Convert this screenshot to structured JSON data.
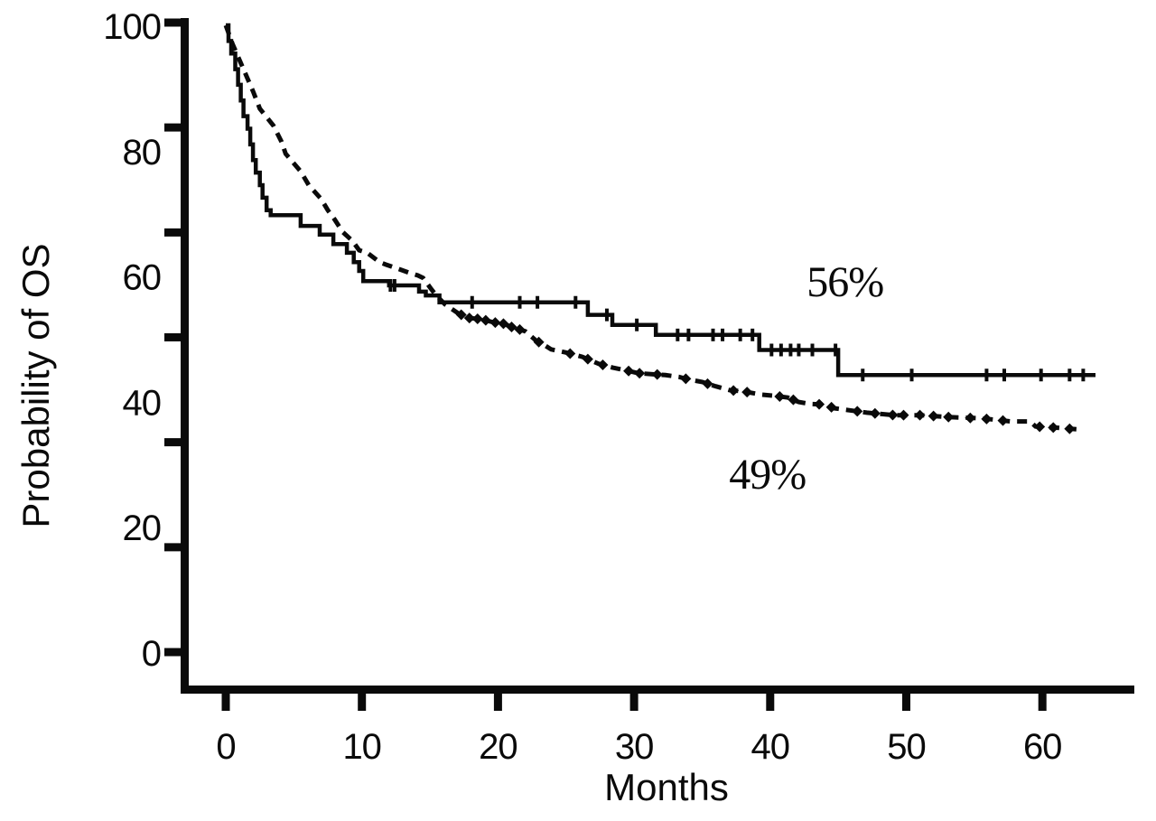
{
  "figure": {
    "background": "#ffffff",
    "ink_color": "#0a0a0a"
  },
  "chart_data": {
    "type": "line",
    "subtype": "kaplan-meier-survival",
    "title": "",
    "xlabel": "Months",
    "ylabel": "Probability of OS",
    "xlim": [
      0,
      67
    ],
    "ylim": [
      0,
      100
    ],
    "grid": false,
    "legend": "none",
    "x_ticks": [
      0,
      10,
      20,
      30,
      40,
      50,
      60
    ],
    "y_axis": {
      "labels": [
        100,
        80,
        60,
        40,
        20,
        0
      ],
      "tick_mark_count": 7
    },
    "annotations": [
      {
        "text": "56%",
        "t": 45.5,
        "p": 59.1
      },
      {
        "text": "49%",
        "t": 39.8,
        "p": 28.4
      }
    ],
    "series": [
      {
        "name": "os-curve-solid",
        "annotation_label": "56%",
        "style": "solid-step",
        "points": [
          [
            0,
            100
          ],
          [
            0.2,
            97.5
          ],
          [
            0.4,
            95.5
          ],
          [
            0.7,
            93
          ],
          [
            0.9,
            90.5
          ],
          [
            1.1,
            88
          ],
          [
            1.3,
            85.5
          ],
          [
            1.6,
            83.5
          ],
          [
            1.8,
            81
          ],
          [
            2.0,
            78.5
          ],
          [
            2.2,
            76.5
          ],
          [
            2.5,
            74.5
          ],
          [
            2.7,
            72.5
          ],
          [
            3.0,
            70.5
          ],
          [
            3.3,
            69.7
          ],
          [
            5.4,
            69.7
          ],
          [
            5.5,
            68.0
          ],
          [
            6.8,
            68.0
          ],
          [
            6.9,
            66.6
          ],
          [
            7.8,
            66.6
          ],
          [
            7.9,
            65.1
          ],
          [
            8.8,
            65.1
          ],
          [
            8.9,
            63.7
          ],
          [
            9.3,
            63.7
          ],
          [
            9.4,
            62.2
          ],
          [
            9.7,
            62.2
          ],
          [
            9.8,
            60.8
          ],
          [
            10.0,
            60.8
          ],
          [
            10.1,
            59.2
          ],
          [
            11.9,
            59.2
          ],
          [
            12.0,
            58.5
          ],
          [
            14.1,
            58.5
          ],
          [
            14.2,
            57.5
          ],
          [
            14.6,
            57.5
          ],
          [
            14.7,
            56.9
          ],
          [
            15.6,
            56.9
          ],
          [
            15.7,
            55.8
          ],
          [
            26.5,
            55.8
          ],
          [
            26.6,
            53.8
          ],
          [
            28.3,
            53.8
          ],
          [
            28.4,
            52.2
          ],
          [
            31.5,
            52.2
          ],
          [
            31.6,
            50.6
          ],
          [
            39.1,
            50.6
          ],
          [
            39.2,
            48.2
          ],
          [
            44.9,
            48.2
          ],
          [
            45.0,
            44.2
          ],
          [
            63.9,
            44.2
          ]
        ],
        "censor_tick_months": [
          12.1,
          12.4,
          18.1,
          21.6,
          22.9,
          25.7,
          28.0,
          30.2,
          33.2,
          34.0,
          35.8,
          36.5,
          37.8,
          38.7,
          40.1,
          40.8,
          41.5,
          42.1,
          43.1,
          44.8,
          46.8,
          50.4,
          55.9,
          57.2,
          59.9,
          62.0,
          63.0
        ]
      },
      {
        "name": "os-curve-dashed",
        "annotation_label": "49%",
        "style": "dashed",
        "points": [
          [
            0,
            100
          ],
          [
            0.5,
            97
          ],
          [
            1.0,
            94.5
          ],
          [
            1.5,
            92
          ],
          [
            2.0,
            89.5
          ],
          [
            2.5,
            86.7
          ],
          [
            3.5,
            84
          ],
          [
            4.1,
            81.4
          ],
          [
            4.4,
            79.5
          ],
          [
            5.5,
            76.7
          ],
          [
            6.1,
            74.5
          ],
          [
            7.0,
            72.3
          ],
          [
            7.5,
            70.5
          ],
          [
            8.0,
            69.0
          ],
          [
            8.6,
            67.0
          ],
          [
            9.3,
            65.6
          ],
          [
            9.8,
            64.1
          ],
          [
            10.4,
            63.7
          ],
          [
            11.3,
            62.2
          ],
          [
            11.8,
            61.8
          ],
          [
            12.6,
            61.2
          ],
          [
            13.5,
            60.5
          ],
          [
            14.1,
            60.1
          ],
          [
            14.5,
            59.7
          ],
          [
            15.1,
            57.9
          ],
          [
            15.5,
            56.8
          ],
          [
            16.1,
            55.5
          ],
          [
            17.1,
            54.0
          ],
          [
            17.9,
            53.3
          ],
          [
            18.8,
            53.1
          ],
          [
            19.7,
            52.6
          ],
          [
            20.4,
            52.4
          ],
          [
            21.2,
            51.7
          ],
          [
            22.0,
            51.2
          ],
          [
            22.8,
            49.7
          ],
          [
            23.4,
            49.0
          ],
          [
            23.9,
            48.3
          ],
          [
            25.0,
            47.8
          ],
          [
            26.2,
            47.1
          ],
          [
            27.4,
            46.0
          ],
          [
            28.4,
            45.4
          ],
          [
            29.3,
            45.0
          ],
          [
            30.3,
            44.5
          ],
          [
            32.3,
            44.2
          ],
          [
            33.3,
            43.9
          ],
          [
            34.0,
            43.5
          ],
          [
            35.0,
            43.1
          ],
          [
            36.0,
            42.4
          ],
          [
            37.0,
            41.8
          ],
          [
            38.0,
            41.6
          ],
          [
            39.3,
            41.1
          ],
          [
            40.3,
            40.9
          ],
          [
            41.3,
            40.6
          ],
          [
            42.1,
            39.9
          ],
          [
            42.9,
            39.6
          ],
          [
            44.0,
            39.5
          ],
          [
            44.7,
            38.9
          ],
          [
            46.1,
            38.5
          ],
          [
            47.1,
            38.2
          ],
          [
            49.1,
            37.8
          ],
          [
            51.1,
            37.8
          ],
          [
            53.1,
            37.5
          ],
          [
            55.4,
            37.3
          ],
          [
            56.4,
            37.1
          ],
          [
            57.7,
            36.8
          ],
          [
            59.1,
            36.8
          ],
          [
            59.5,
            36.0
          ],
          [
            61.0,
            35.8
          ],
          [
            62.8,
            35.5
          ]
        ],
        "censor_mark_months": [
          17.3,
          17.9,
          18.5,
          19.1,
          19.8,
          20.4,
          21.0,
          21.6,
          23.0,
          25.3,
          26.6,
          27.7,
          29.6,
          30.4,
          31.7,
          33.8,
          35.4,
          37.3,
          38.3,
          40.7,
          41.7,
          43.6,
          44.5,
          46.4,
          47.7,
          49.0,
          49.8,
          51.0,
          52.0,
          53.1,
          54.7,
          55.9,
          57.1,
          59.8,
          60.8,
          62.0
        ]
      }
    ]
  }
}
